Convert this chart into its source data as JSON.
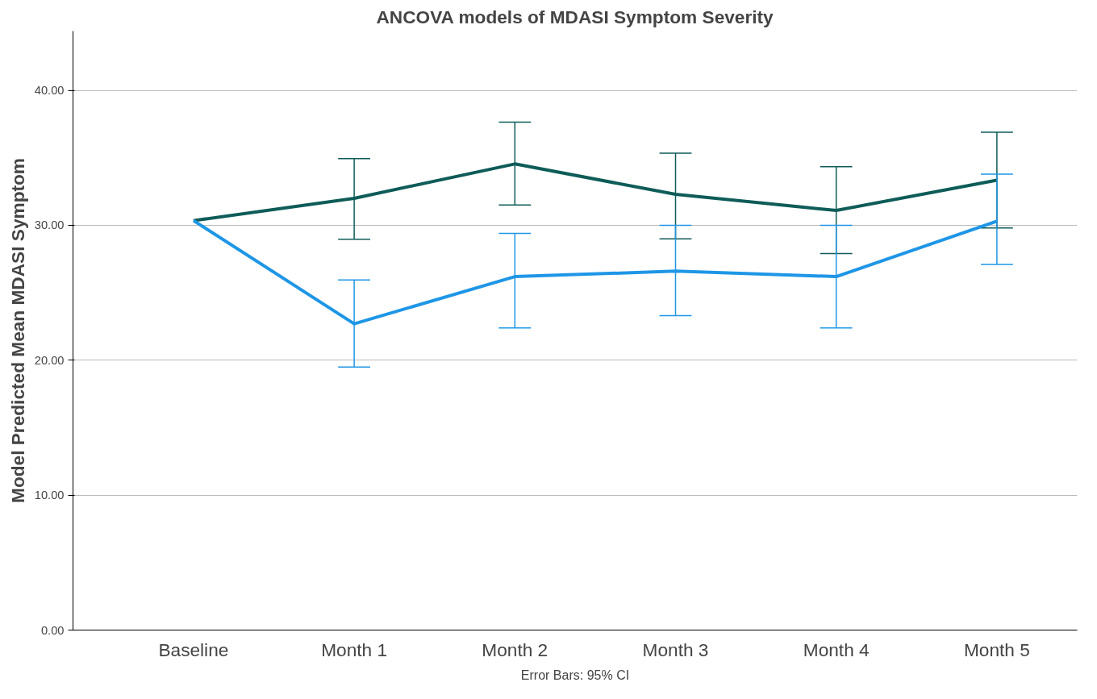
{
  "chart_data": {
    "type": "line",
    "title": "ANCOVA models of MDASI Symptom Severity",
    "ylabel": "Model Predicted Mean MDASI Symptom",
    "categories": [
      "Baseline",
      "Month 1",
      "Month 2",
      "Month 3",
      "Month 4",
      "Month 5"
    ],
    "series": [
      {
        "color": "#0e5c58",
        "values": [
          30.35,
          32.0,
          34.55,
          32.3,
          31.1,
          33.35
        ],
        "errors": [
          null,
          [
            28.97,
            34.95
          ],
          [
            31.5,
            37.65
          ],
          [
            29.0,
            35.35
          ],
          [
            27.9,
            34.35
          ],
          [
            29.8,
            36.9
          ]
        ]
      },
      {
        "color": "#1e96e6",
        "values": [
          30.35,
          22.7,
          26.2,
          26.6,
          26.2,
          30.3
        ],
        "errors": [
          null,
          [
            19.5,
            25.95
          ],
          [
            22.4,
            29.4
          ],
          [
            23.3,
            30.0
          ],
          [
            22.4,
            30.0
          ],
          [
            27.1,
            33.8
          ]
        ]
      }
    ],
    "ylim": [
      0,
      44.4
    ],
    "yticks": [
      {
        "value": 0,
        "label": "0.00"
      },
      {
        "value": 10,
        "label": "10.00"
      },
      {
        "value": 20,
        "label": "20.00"
      },
      {
        "value": 30,
        "label": "30.00"
      },
      {
        "value": 40,
        "label": "40.00"
      }
    ],
    "grid": "y",
    "marker": "none",
    "line_style": "solid",
    "annotations": [
      "Error Bars: 95% CI"
    ]
  }
}
